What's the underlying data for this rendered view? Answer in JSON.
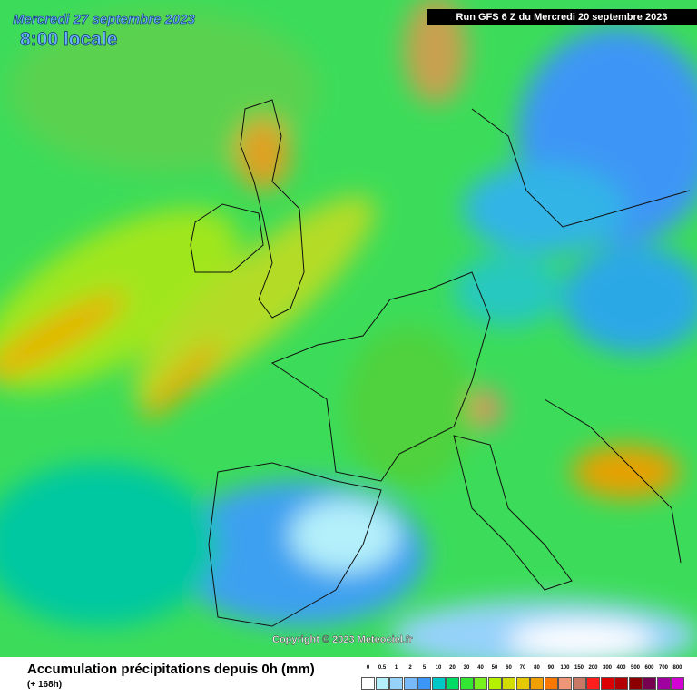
{
  "header": {
    "date": "Mercredi 27 septembre 2023",
    "time": "8:00 locale",
    "run": "Run GFS 6 Z du Mercredi 20 septembre 2023"
  },
  "copyright": "Copyright © 2023 Meteociel.fr",
  "footer": {
    "title": "Accumulation précipitations depuis 0h (mm)",
    "subtitle": "(+ 168h)"
  },
  "legend": {
    "items": [
      {
        "value": 0,
        "color": "#ffffff"
      },
      {
        "value": 0.5,
        "color": "#b4f0fa"
      },
      {
        "value": 1,
        "color": "#96d2fa"
      },
      {
        "value": 2,
        "color": "#78b9fa"
      },
      {
        "value": 5,
        "color": "#3c96f5"
      },
      {
        "value": 10,
        "color": "#00c8c8"
      },
      {
        "value": 20,
        "color": "#00dc64"
      },
      {
        "value": 30,
        "color": "#32e632"
      },
      {
        "value": 40,
        "color": "#78f01e"
      },
      {
        "value": 50,
        "color": "#b4f000"
      },
      {
        "value": 60,
        "color": "#d2dc00"
      },
      {
        "value": 70,
        "color": "#e6c800"
      },
      {
        "value": 80,
        "color": "#f0a000"
      },
      {
        "value": 90,
        "color": "#fa7800"
      },
      {
        "value": 100,
        "color": "#f09678"
      },
      {
        "value": 150,
        "color": "#c87864"
      },
      {
        "value": 200,
        "color": "#ff1e1e"
      },
      {
        "value": 300,
        "color": "#dc0000"
      },
      {
        "value": 400,
        "color": "#b40000"
      },
      {
        "value": 500,
        "color": "#8c0000"
      },
      {
        "value": 600,
        "color": "#780050"
      },
      {
        "value": 700,
        "color": "#a000a0"
      },
      {
        "value": 800,
        "color": "#d200d2"
      }
    ]
  }
}
